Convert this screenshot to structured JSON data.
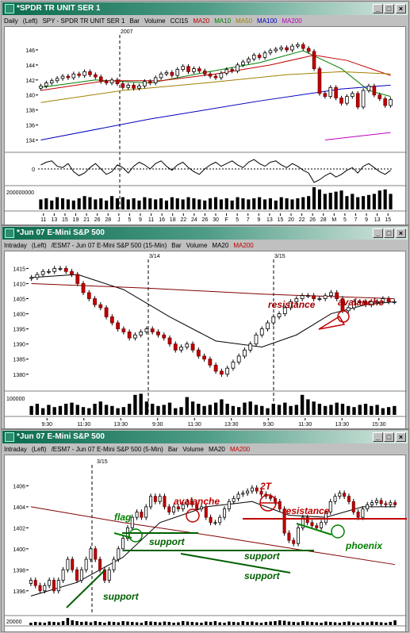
{
  "windows": [
    {
      "title": "*SPDR TR UNIT SER 1",
      "info": {
        "interval": "Daily",
        "axis": "(Left)",
        "symbol": "SPY - SPDR TR UNIT SER 1",
        "kind": "Bar",
        "volume": "Volume",
        "ind1": "CCI15",
        "ma": [
          {
            "label": "MA20",
            "color": "#c00000"
          },
          {
            "label": "MA10",
            "color": "#008000"
          },
          {
            "label": "MA50",
            "color": "#a08000"
          },
          {
            "label": "MA100",
            "color": "#0000c0"
          },
          {
            "label": "MA200",
            "color": "#c000c0"
          }
        ]
      },
      "marker": "2007",
      "x_ticks": [
        "11",
        "13",
        "15",
        "19",
        "21",
        "26",
        "28",
        "J",
        "5",
        "9",
        "11",
        "16",
        "18",
        "22",
        "24",
        "26",
        "30",
        "F",
        "5",
        "7",
        "9",
        "13",
        "15",
        "20",
        "22",
        "26",
        "28",
        "M",
        "5",
        "7",
        "9",
        "13",
        "15"
      ],
      "cci_label": "0",
      "vol_label": "200000000"
    },
    {
      "title": "*Jun 07 E-Mini S&P 500",
      "info": {
        "interval": "Intraday",
        "axis": "(Left)",
        "symbol": "/ESM7 - Jun 07 E-Mini S&P 500 (15-Min)",
        "kind": "Bar",
        "volume": "Volume",
        "ma": [
          {
            "label": "MA20",
            "color": "#000000"
          },
          {
            "label": "MA200",
            "color": "#c00000"
          }
        ]
      },
      "markers": [
        "3/14",
        "3/15"
      ],
      "x_ticks": [
        "9:30",
        "11:30",
        "13:30",
        "9:30",
        "11:30",
        "13:30",
        "9:30",
        "11:30",
        "13:30",
        "15:30"
      ],
      "vol_label": "100000",
      "annotations": [
        {
          "text": "resistance",
          "color": "#a00000"
        },
        {
          "text": "avalanche",
          "color": "#a00000"
        }
      ]
    },
    {
      "title": "*Jun 07 E-Mini S&P 500",
      "info": {
        "interval": "Intraday",
        "axis": "(Left)",
        "symbol": "/ESM7 - Jun 07 E-Mini S&P 500 (5-Min)",
        "kind": "Bar",
        "volume": "Volume",
        "ma": [
          {
            "label": "MA20",
            "color": "#000000"
          },
          {
            "label": "MA200",
            "color": "#c00000"
          }
        ]
      },
      "marker": "3/15",
      "x_ticks": [
        "15:00",
        "15:30",
        "9:30",
        "10:00",
        "10:30",
        "11:00",
        "11:30",
        "12:00",
        "12:30",
        "13:00",
        "13:30",
        "14:00",
        "14:30",
        "15:00",
        "15:30"
      ],
      "vol_label": "20000",
      "annotations": [
        {
          "text": "flag",
          "color": "#008000"
        },
        {
          "text": "avalanche",
          "color": "#c00000"
        },
        {
          "text": "2T",
          "color": "#c00000"
        },
        {
          "text": "resistance",
          "color": "#c00000"
        },
        {
          "text": "support",
          "color": "#006000"
        },
        {
          "text": "support",
          "color": "#006000"
        },
        {
          "text": "support",
          "color": "#006000"
        },
        {
          "text": "support",
          "color": "#006000"
        },
        {
          "text": "phoenix",
          "color": "#008000"
        }
      ]
    }
  ],
  "chart_data": [
    {
      "type": "bar",
      "title": "SPY - SPDR TR UNIT SER 1 Daily",
      "ylim": [
        133,
        148
      ],
      "y_ticks": [
        134,
        136,
        138,
        140,
        142,
        144,
        146
      ],
      "closes": [
        141.2,
        141.6,
        141.9,
        142.2,
        142.5,
        142.3,
        142.8,
        142.6,
        143.1,
        142.7,
        142.4,
        141.8,
        141.6,
        142.0,
        141.5,
        141.0,
        141.3,
        140.9,
        141.2,
        141.8,
        141.6,
        142.3,
        142.8,
        143.0,
        142.6,
        143.4,
        143.8,
        143.1,
        143.5,
        143.2,
        142.8,
        142.5,
        142.3,
        142.9,
        143.4,
        143.2,
        144.0,
        144.4,
        144.8,
        145.3,
        145.0,
        145.6,
        145.9,
        146.1,
        146.3,
        146.0,
        146.5,
        146.7,
        146.2,
        145.8,
        143.5,
        140.2,
        139.8,
        141.0,
        139.6,
        138.9,
        139.8,
        140.2,
        138.4,
        140.6,
        141.2,
        140.0,
        139.5,
        138.6,
        139.4
      ],
      "moving_averages": [
        {
          "name": "MA10",
          "color": "#008000",
          "points": [
            [
              0,
              141.0
            ],
            [
              10,
              142.0
            ],
            [
              20,
              141.6
            ],
            [
              30,
              143.0
            ],
            [
              40,
              144.3
            ],
            [
              48,
              145.9
            ],
            [
              55,
              143.5
            ],
            [
              60,
              140.6
            ],
            [
              64,
              139.8
            ]
          ]
        },
        {
          "name": "MA20",
          "color": "#c00000",
          "points": [
            [
              0,
              140.6
            ],
            [
              12,
              141.9
            ],
            [
              22,
              141.9
            ],
            [
              32,
              142.8
            ],
            [
              42,
              144.0
            ],
            [
              50,
              145.3
            ],
            [
              56,
              144.6
            ],
            [
              64,
              142.6
            ]
          ]
        },
        {
          "name": "MA50",
          "color": "#a08000",
          "points": [
            [
              0,
              139.0
            ],
            [
              15,
              140.6
            ],
            [
              30,
              141.6
            ],
            [
              45,
              142.7
            ],
            [
              55,
              143.1
            ],
            [
              64,
              142.8
            ]
          ]
        },
        {
          "name": "MA100",
          "color": "#0000c0",
          "points": [
            [
              0,
              134.0
            ],
            [
              20,
              136.8
            ],
            [
              40,
              139.2
            ],
            [
              55,
              140.8
            ],
            [
              64,
              141.3
            ]
          ]
        },
        {
          "name": "MA200",
          "color": "#c000c0",
          "points": [
            [
              52,
              134.0
            ],
            [
              58,
              134.5
            ],
            [
              64,
              135.0
            ]
          ]
        }
      ],
      "cci": [
        0.3,
        0.5,
        0.6,
        0.2,
        0.1,
        0.4,
        -0.2,
        -0.5,
        -0.3,
        0.1,
        0.4,
        0.0,
        -0.4,
        -0.2,
        0.3,
        0.1,
        -0.3,
        0.2,
        0.5,
        0.3,
        0.0,
        0.4,
        0.6,
        0.2,
        -0.1,
        0.3,
        0.5,
        0.1,
        -0.2,
        -0.4,
        0.0,
        0.3,
        0.5,
        0.2,
        0.4,
        0.6,
        0.3,
        0.1,
        0.5,
        0.7,
        0.4,
        0.2,
        0.5,
        0.6,
        0.3,
        0.1,
        0.4,
        0.2,
        -0.1,
        -0.3,
        -1.0,
        -0.8,
        -0.5,
        -0.3,
        -0.6,
        -0.4,
        -0.1,
        0.1,
        -0.3,
        0.2,
        0.4,
        0.1,
        -0.2,
        -0.4,
        -0.1
      ],
      "volume": [
        0.45,
        0.5,
        0.4,
        0.55,
        0.5,
        0.45,
        0.4,
        0.5,
        0.6,
        0.55,
        0.45,
        0.5,
        0.4,
        0.6,
        0.5,
        0.55,
        0.45,
        0.5,
        0.4,
        0.55,
        0.5,
        0.45,
        0.5,
        0.4,
        0.55,
        0.5,
        0.45,
        0.55,
        0.5,
        0.45,
        0.4,
        0.5,
        0.55,
        0.45,
        0.5,
        0.4,
        0.55,
        0.5,
        0.45,
        0.5,
        0.55,
        0.45,
        0.5,
        0.4,
        0.55,
        0.5,
        0.45,
        0.5,
        0.55,
        0.6,
        1.0,
        0.9,
        0.7,
        0.75,
        0.8,
        0.85,
        0.6,
        0.7,
        0.55,
        0.6,
        0.65,
        0.7,
        0.85,
        0.9,
        0.7
      ]
    },
    {
      "type": "bar",
      "title": "/ESM7 - Jun 07 E-Mini S&P 500 (15-Min)",
      "ylim": [
        1376,
        1418
      ],
      "y_ticks": [
        1380,
        1385,
        1390,
        1395,
        1400,
        1405,
        1410,
        1415
      ],
      "closes": [
        1412,
        1413,
        1414,
        1414,
        1415,
        1415,
        1414,
        1413,
        1410,
        1407,
        1405,
        1403,
        1402,
        1399,
        1397,
        1395,
        1394,
        1392,
        1393,
        1394,
        1395,
        1394,
        1393,
        1392,
        1390,
        1388,
        1389,
        1390,
        1388,
        1386,
        1385,
        1383,
        1381,
        1380,
        1382,
        1384,
        1386,
        1388,
        1390,
        1393,
        1395,
        1397,
        1399,
        1400,
        1402,
        1404,
        1405,
        1406,
        1406,
        1405,
        1405,
        1406,
        1407,
        1405,
        1401,
        1402,
        1404,
        1404,
        1403,
        1404,
        1404,
        1405,
        1404,
        1404
      ],
      "moving_averages": [
        {
          "name": "MA20",
          "color": "#000000",
          "points": [
            [
              0,
              1412
            ],
            [
              8,
              1413
            ],
            [
              16,
              1408
            ],
            [
              24,
              1399
            ],
            [
              32,
              1391
            ],
            [
              40,
              1389
            ],
            [
              46,
              1393
            ],
            [
              52,
              1400
            ],
            [
              58,
              1403
            ],
            [
              63,
              1404
            ]
          ]
        },
        {
          "name": "MA200",
          "color": "#800000",
          "points": [
            [
              0,
              1410
            ],
            [
              20,
              1408.5
            ],
            [
              40,
              1406.5
            ],
            [
              63,
              1405
            ]
          ]
        }
      ],
      "volume": [
        0.4,
        0.5,
        0.3,
        0.45,
        0.35,
        0.4,
        0.5,
        0.55,
        0.45,
        0.35,
        0.3,
        0.5,
        0.6,
        0.45,
        0.4,
        0.3,
        0.35,
        0.5,
        0.9,
        0.95,
        0.6,
        0.5,
        0.4,
        0.45,
        0.55,
        0.3,
        0.35,
        0.8,
        0.6,
        0.5,
        0.4,
        0.45,
        0.55,
        0.7,
        0.5,
        0.4,
        0.35,
        0.55,
        0.6,
        0.45,
        0.4,
        0.3,
        0.5,
        0.45,
        0.55,
        0.4,
        0.45,
        0.9,
        0.7,
        0.6,
        0.5,
        0.4,
        0.45,
        0.55,
        0.5,
        0.4,
        0.35,
        0.45,
        0.5,
        0.4,
        0.45,
        0.3,
        0.35,
        0.4
      ]
    },
    {
      "type": "bar",
      "title": "/ESM7 - Jun 07 E-Mini S&P 500 (5-Min)",
      "ylim": [
        1395,
        1408
      ],
      "y_ticks": [
        1396,
        1398,
        1400,
        1402,
        1404,
        1406
      ],
      "closes": [
        1397,
        1396.5,
        1396,
        1396.5,
        1397,
        1396,
        1397,
        1398,
        1399,
        1398,
        1397,
        1398,
        1399,
        1400,
        1399,
        1398,
        1397,
        1398,
        1399,
        1400,
        1401,
        1402,
        1403,
        1403.5,
        1403,
        1404,
        1405,
        1404.5,
        1405,
        1404,
        1403.5,
        1404,
        1403.8,
        1404.2,
        1404.5,
        1404.2,
        1403.8,
        1404,
        1403,
        1402.5,
        1402.5,
        1403,
        1403.8,
        1404.5,
        1404.8,
        1405.2,
        1405.3,
        1405.5,
        1405.8,
        1405.5,
        1405.2,
        1405,
        1404.8,
        1404.5,
        1403.8,
        1401.5,
        1400.8,
        1400.5,
        1402,
        1403,
        1402.5,
        1402.2,
        1402,
        1402.5,
        1403.5,
        1404.5,
        1405,
        1405.3,
        1405,
        1404.5,
        1403.5,
        1403,
        1403.8,
        1404.2,
        1404.4,
        1404.6,
        1404.3,
        1404.2,
        1404.4,
        1404.2
      ],
      "moving_averages": [
        {
          "name": "MA20",
          "color": "#000000",
          "points": [
            [
              0,
              1395.5
            ],
            [
              10,
              1396.8
            ],
            [
              20,
              1399.2
            ],
            [
              28,
              1402.5
            ],
            [
              38,
              1404
            ],
            [
              48,
              1404.5
            ],
            [
              56,
              1403.2
            ],
            [
              64,
              1403
            ],
            [
              72,
              1404
            ],
            [
              79,
              1404
            ]
          ]
        },
        {
          "name": "MA200",
          "color": "#800000",
          "points": [
            [
              0,
              1404
            ],
            [
              20,
              1402.5
            ],
            [
              40,
              1401.2
            ],
            [
              60,
              1399.8
            ],
            [
              79,
              1398.5
            ]
          ]
        }
      ],
      "volume": [
        0.3,
        0.4,
        0.35,
        0.3,
        0.45,
        0.4,
        0.35,
        0.5,
        0.9,
        0.6,
        0.5,
        0.4,
        0.45,
        0.35,
        0.5,
        0.4,
        0.3,
        0.45,
        0.4,
        0.35,
        0.5,
        0.45,
        0.4,
        0.35,
        0.3,
        0.5,
        0.45,
        0.4,
        0.35,
        0.45,
        0.4,
        0.3,
        0.35,
        0.5,
        0.45,
        0.4,
        0.35,
        0.3,
        0.45,
        0.4,
        0.5,
        0.35,
        0.3,
        0.45,
        0.4,
        0.35,
        0.5,
        0.4,
        0.45,
        0.35,
        0.3,
        0.4,
        0.45,
        0.5,
        0.6,
        0.55,
        0.45,
        0.4,
        0.35,
        0.5,
        0.45,
        0.4,
        0.35,
        0.3,
        0.45,
        0.4,
        0.35,
        0.3,
        0.4,
        0.45,
        0.35,
        0.3,
        0.4,
        0.35,
        0.45,
        0.4,
        0.35,
        0.3,
        0.4,
        0.6
      ]
    }
  ]
}
